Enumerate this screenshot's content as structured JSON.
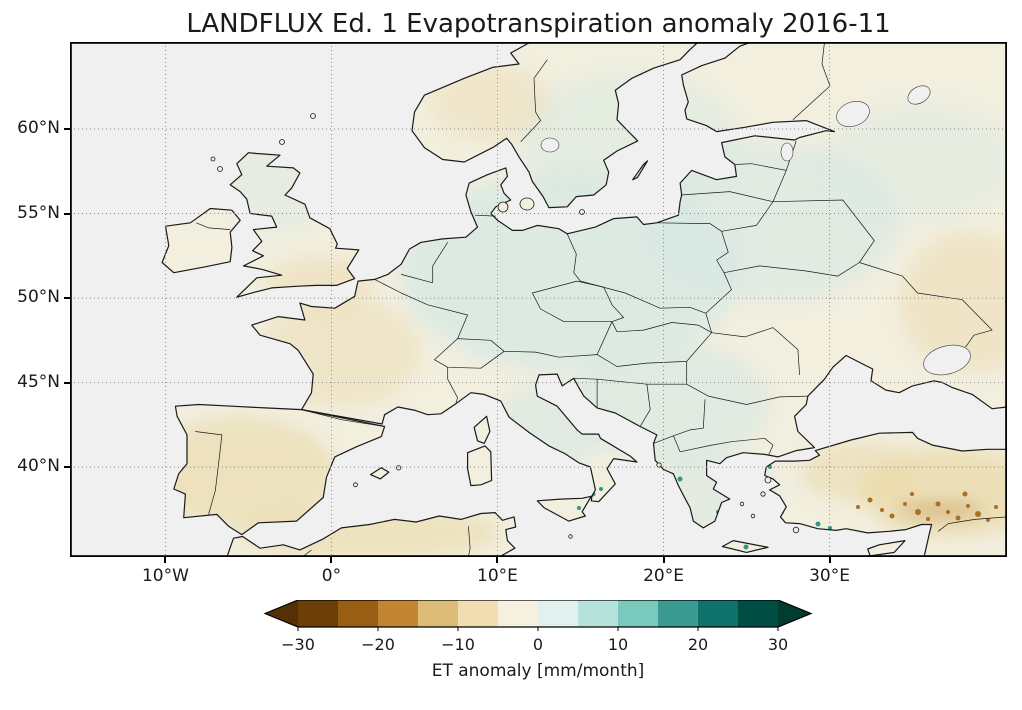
{
  "figure": {
    "title": "LANDFLUX Ed. 1 Evapotranspiration anomaly 2016-11",
    "dataset": "LANDFLUX Ed. 1",
    "variable": "Evapotranspiration anomaly",
    "period": "2016-11"
  },
  "chart_data": {
    "type": "heatmap",
    "subtype": "geographic anomaly map",
    "region": "Europe",
    "projection": "equirectangular",
    "title": "LANDFLUX Ed. 1 Evapotranspiration anomaly 2016-11",
    "grid": true,
    "extent": {
      "lon_min": -15.75,
      "lon_max": 40.69,
      "lat_min": 34.68,
      "lat_max": 65.15
    },
    "x_ticks": [
      {
        "value": -10,
        "label": "10°W"
      },
      {
        "value": 0,
        "label": "0°"
      },
      {
        "value": 10,
        "label": "10°E"
      },
      {
        "value": 20,
        "label": "20°E"
      },
      {
        "value": 30,
        "label": "30°E"
      }
    ],
    "y_ticks": [
      {
        "value": 60,
        "label": "60°N"
      },
      {
        "value": 55,
        "label": "55°N"
      },
      {
        "value": 50,
        "label": "50°N"
      },
      {
        "value": 45,
        "label": "45°N"
      },
      {
        "value": 40,
        "label": "40°N"
      }
    ],
    "colorbar": {
      "label": "ET anomaly [mm/month]",
      "orientation": "horizontal",
      "colormap": "BrBG",
      "vmin": -30,
      "vmax": 30,
      "extend": "both",
      "levels": [
        -30,
        -25,
        -20,
        -15,
        -10,
        -5,
        0,
        5,
        10,
        15,
        20,
        25,
        30
      ],
      "colors": [
        "#6b3e07",
        "#995d13",
        "#c28633",
        "#dcbd77",
        "#f0deb2",
        "#f5f0e0",
        "#e2f0ee",
        "#b5e3dc",
        "#7ac9bd",
        "#3b9b93",
        "#0e726a",
        "#004e43"
      ],
      "under_color": "#543005",
      "over_color": "#003c30",
      "ticks": [
        {
          "value": -30,
          "label": "−30"
        },
        {
          "value": -20,
          "label": "−20"
        },
        {
          "value": -10,
          "label": "−10"
        },
        {
          "value": 0,
          "label": "0"
        },
        {
          "value": 10,
          "label": "10"
        },
        {
          "value": 20,
          "label": "20"
        },
        {
          "value": 30,
          "label": "30"
        }
      ]
    },
    "observed_pattern": "Anomalies over most of Europe are weak (about -5 to +5 mm/month): slight negative (pale tan) over Iberia, western France, southern England and northwest Africa; slight positive (pale blue-green) over central and eastern Europe, Italy, the Balkans and the Baltics; stronger negative anomalies (brown, -10 to -30) across southern Turkey; scattered positive teal specks (+10 to +20) along southern Italy, Greece and Mediterranean coasts. Seas are shown in neutral gray."
  },
  "colors": {
    "sea": "#f0f0f0",
    "land": "#f2efdf",
    "coast": "#1a1a1a",
    "grid": "#8a8a8a",
    "text": "#1a1a1a",
    "tint_blue": "#d5e8e3",
    "tint_tan": "#ead8a6",
    "tint_brown": "#c08a3a",
    "speck_brown": "#a96f24",
    "speck_teal": "#2e978a"
  }
}
